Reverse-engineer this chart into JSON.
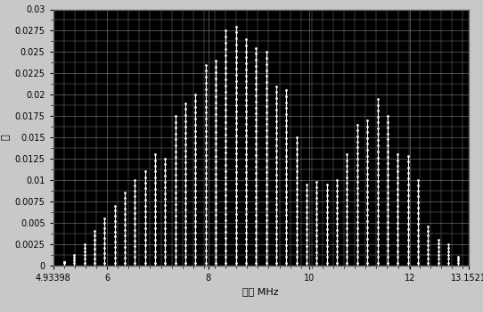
{
  "xmin": 4.93398,
  "xmax": 13.1521,
  "ymin": 0,
  "ymax": 0.03,
  "xlabel": "频率 MHz",
  "ylabel": "幅",
  "xticks": [
    4.93398,
    6,
    8,
    10,
    12,
    13.1521
  ],
  "xtick_labels": [
    "4.93398",
    "6",
    "8",
    "10",
    "12",
    "13.1521"
  ],
  "yticks": [
    0,
    0.0025,
    0.005,
    0.0075,
    0.01,
    0.0125,
    0.015,
    0.0175,
    0.02,
    0.0225,
    0.025,
    0.0275,
    0.03
  ],
  "axes_face_color": "#000000",
  "grid_color": "#888888",
  "line_color": "#ffffff",
  "marker_color": "#ffffff",
  "stem_freqs": [
    5.15,
    5.35,
    5.55,
    5.75,
    5.95,
    6.15,
    6.35,
    6.55,
    6.75,
    6.95,
    7.15,
    7.35,
    7.55,
    7.75,
    7.95,
    8.15,
    8.35,
    8.55,
    8.75,
    8.95,
    9.15,
    9.35,
    9.55,
    9.75,
    9.95,
    10.15,
    10.35,
    10.55,
    10.75,
    10.95,
    11.15,
    11.35,
    11.55,
    11.75,
    11.95,
    12.15,
    12.35,
    12.55,
    12.75,
    12.95
  ],
  "stem_values": [
    0.0004,
    0.0012,
    0.0025,
    0.004,
    0.0055,
    0.007,
    0.0085,
    0.01,
    0.011,
    0.013,
    0.0125,
    0.0175,
    0.019,
    0.02,
    0.0235,
    0.024,
    0.0275,
    0.028,
    0.0265,
    0.0255,
    0.025,
    0.021,
    0.0205,
    0.015,
    0.0095,
    0.0098,
    0.0095,
    0.01,
    0.013,
    0.0165,
    0.017,
    0.0195,
    0.0175,
    0.013,
    0.0128,
    0.01,
    0.0045,
    0.003,
    0.0025,
    0.001
  ],
  "fig_bg": "#c8c8c8",
  "tick_fontsize": 7,
  "label_fontsize": 8
}
